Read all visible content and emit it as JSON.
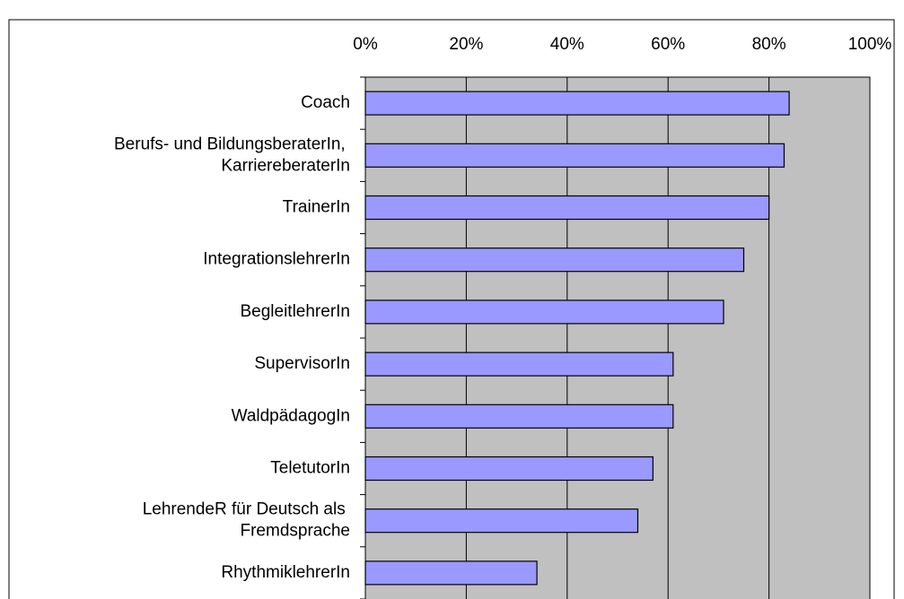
{
  "chart_data": {
    "type": "bar",
    "orientation": "horizontal",
    "categories": [
      "Coach",
      "Berufs- und BildungsberaterIn, KarriereberaterIn",
      "TrainerIn",
      "IntegrationslehrerIn",
      "BegleitlehrerIn",
      "SupervisorIn",
      "WaldpädagogIn",
      "TeletutorIn",
      "LehrendeR für Deutsch als Fremdsprache",
      "RhythmiklehrerIn"
    ],
    "values": [
      84,
      83,
      80,
      75,
      71,
      61,
      61,
      57,
      54,
      34
    ],
    "color": "#9999ff",
    "xlim": [
      0,
      100
    ],
    "xticks": [
      {
        "value": 0,
        "label": "0%"
      },
      {
        "value": 20,
        "label": "20%"
      },
      {
        "value": 40,
        "label": "40%"
      },
      {
        "value": 60,
        "label": "60%"
      },
      {
        "value": 80,
        "label": "80%"
      },
      {
        "value": 100,
        "label": "100%"
      }
    ],
    "grid": true
  }
}
